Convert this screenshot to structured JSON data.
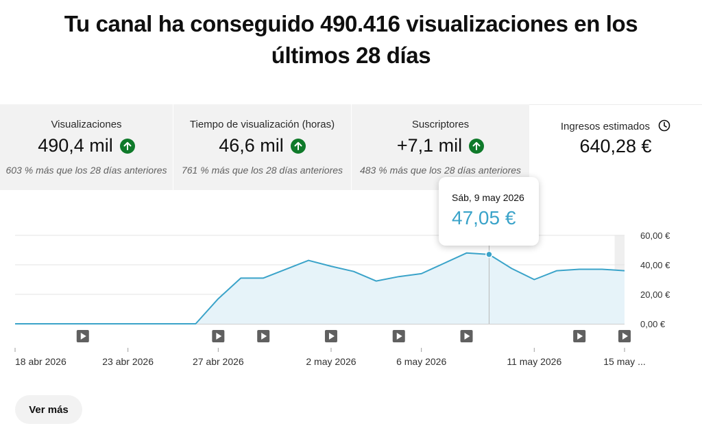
{
  "headline": "Tu canal ha conseguido 490.416 visualizaciones en los últimos 28 días",
  "cards": [
    {
      "label": "Visualizaciones",
      "value": "490,4 mil",
      "trend_icon": "arrow-up-circle-icon",
      "compare": "603 % más que los 28 días anteriores"
    },
    {
      "label": "Tiempo de visualización (horas)",
      "value": "46,6 mil",
      "trend_icon": "arrow-up-circle-icon",
      "compare": "761 % más que los 28 días anteriores"
    },
    {
      "label": "Suscriptores",
      "value": "+7,1 mil",
      "trend_icon": "arrow-up-circle-icon",
      "compare": "483 % más que los 28 días anteriores"
    },
    {
      "label": "Ingresos estimados",
      "value": "640,28 €",
      "icon": "clock-icon"
    }
  ],
  "tooltip": {
    "date": "Sáb, 9 may 2026",
    "value": "47,05 €"
  },
  "more_button": "Ver más",
  "colors": {
    "line": "#3aa3c9",
    "area": "#e6f3f9",
    "up": "#0f7a2a",
    "tooltip_value": "#3aa3c9"
  },
  "chart_data": {
    "type": "area",
    "x": [
      "2026-04-18",
      "2026-04-19",
      "2026-04-20",
      "2026-04-21",
      "2026-04-22",
      "2026-04-23",
      "2026-04-24",
      "2026-04-25",
      "2026-04-26",
      "2026-04-27",
      "2026-04-28",
      "2026-04-29",
      "2026-04-30",
      "2026-05-01",
      "2026-05-02",
      "2026-05-03",
      "2026-05-04",
      "2026-05-05",
      "2026-05-06",
      "2026-05-07",
      "2026-05-08",
      "2026-05-09",
      "2026-05-10",
      "2026-05-11",
      "2026-05-12",
      "2026-05-13",
      "2026-05-14",
      "2026-05-15"
    ],
    "values": [
      0,
      0,
      0,
      0,
      0,
      0,
      0,
      0,
      0,
      17,
      31,
      31,
      37,
      43,
      39,
      35.5,
      29,
      32,
      34,
      41,
      48,
      47.05,
      37.5,
      30,
      36,
      37,
      37,
      36
    ],
    "x_tick_labels": [
      "18 abr 2026",
      "23 abr 2026",
      "27 abr 2026",
      "2 may 2026",
      "6 may 2026",
      "11 may 2026",
      "15 may ..."
    ],
    "x_tick_dates": [
      "2026-04-18",
      "2026-04-23",
      "2026-04-27",
      "2026-05-02",
      "2026-05-06",
      "2026-05-11",
      "2026-05-15"
    ],
    "y_tick_labels": [
      "60,00 €",
      "40,00 €",
      "20,00 €",
      "0,00 €"
    ],
    "y_tick_values": [
      60,
      40,
      20,
      0
    ],
    "ylim": [
      0,
      60
    ],
    "grid": true,
    "highlighted_date": "2026-05-09",
    "shaded_last_date": "2026-05-15",
    "video_markers": [
      "2026-04-21",
      "2026-04-27",
      "2026-04-29",
      "2026-05-02",
      "2026-05-05",
      "2026-05-08",
      "2026-05-13",
      "2026-05-15"
    ]
  }
}
